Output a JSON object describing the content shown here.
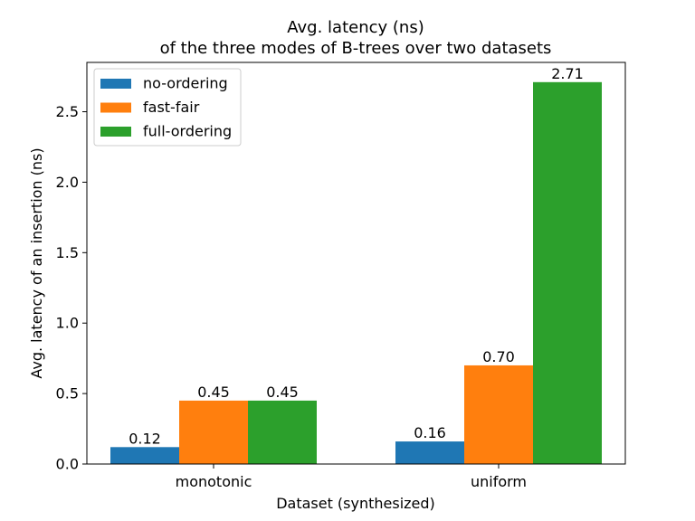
{
  "chart_data": {
    "type": "bar",
    "title": "Avg. latency (ns)",
    "subtitle": "of the three modes of B-trees over two datasets",
    "xlabel": "Dataset (synthesized)",
    "ylabel": "Avg. latency of an insertion (ns)",
    "categories": [
      "monotonic",
      "uniform"
    ],
    "series": [
      {
        "name": "no-ordering",
        "color": "#1f77b4",
        "values": [
          0.12,
          0.16
        ],
        "labels": [
          "0.12",
          "0.16"
        ]
      },
      {
        "name": "fast-fair",
        "color": "#ff7f0e",
        "values": [
          0.45,
          0.7
        ],
        "labels": [
          "0.45",
          "0.70"
        ]
      },
      {
        "name": "full-ordering",
        "color": "#2ca02c",
        "values": [
          0.45,
          2.71
        ],
        "labels": [
          "0.45",
          "2.71"
        ]
      }
    ],
    "ylim": [
      0,
      2.85
    ],
    "yticks": [
      0.0,
      0.5,
      1.0,
      1.5,
      2.0,
      2.5
    ],
    "ytick_labels": [
      "0.0",
      "0.5",
      "1.0",
      "1.5",
      "2.0",
      "2.5"
    ],
    "grid": false,
    "legend_position": "top-left"
  }
}
